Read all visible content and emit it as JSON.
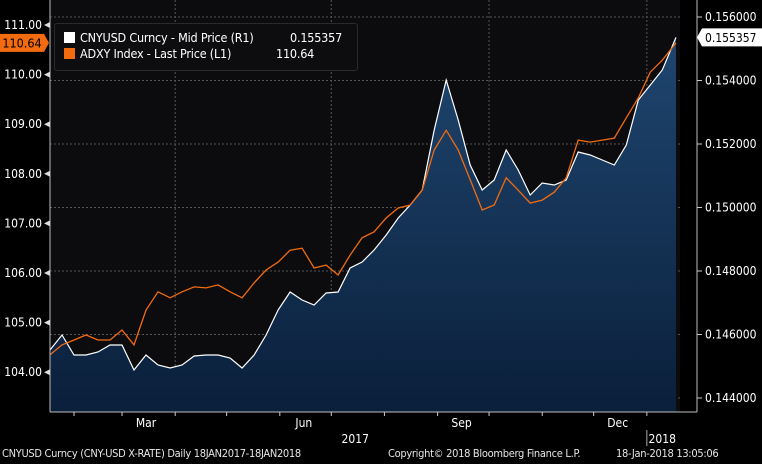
{
  "chart_data": {
    "type": "line",
    "title": "",
    "x": [
      "2017-01-18",
      "2017-01-25",
      "2017-02-01",
      "2017-02-08",
      "2017-02-15",
      "2017-02-22",
      "2017-03-01",
      "2017-03-08",
      "2017-03-15",
      "2017-03-22",
      "2017-03-29",
      "2017-04-05",
      "2017-04-12",
      "2017-04-19",
      "2017-04-26",
      "2017-05-03",
      "2017-05-10",
      "2017-05-17",
      "2017-05-24",
      "2017-05-31",
      "2017-06-07",
      "2017-06-14",
      "2017-06-21",
      "2017-06-28",
      "2017-07-05",
      "2017-07-12",
      "2017-07-19",
      "2017-07-26",
      "2017-08-02",
      "2017-08-09",
      "2017-08-16",
      "2017-08-23",
      "2017-08-30",
      "2017-09-06",
      "2017-09-13",
      "2017-09-20",
      "2017-09-27",
      "2017-10-04",
      "2017-10-11",
      "2017-10-18",
      "2017-10-25",
      "2017-11-01",
      "2017-11-08",
      "2017-11-15",
      "2017-11-22",
      "2017-11-29",
      "2017-12-06",
      "2017-12-13",
      "2017-12-20",
      "2017-12-27",
      "2018-01-03",
      "2018-01-10",
      "2018-01-18"
    ],
    "series": [
      {
        "name": "CNYUSD Curncy - Mid Price (R1)",
        "axis": "right",
        "color": "#ffffff",
        "fill": "area",
        "last_value": "0.155357",
        "values": [
          0.145512,
          0.145984,
          0.145354,
          0.145354,
          0.145449,
          0.145669,
          0.145669,
          0.144882,
          0.145354,
          0.145039,
          0.144945,
          0.145039,
          0.145323,
          0.145354,
          0.145354,
          0.14526,
          0.144945,
          0.145354,
          0.145984,
          0.146772,
          0.147339,
          0.147087,
          0.146929,
          0.147307,
          0.147339,
          0.148094,
          0.148283,
          0.148661,
          0.149134,
          0.149669,
          0.150079,
          0.150551,
          0.152441,
          0.154016,
          0.152756,
          0.151339,
          0.150551,
          0.150866,
          0.151811,
          0.151181,
          0.150394,
          0.150772,
          0.150709,
          0.150866,
          0.151748,
          0.151654,
          0.151496,
          0.151339,
          0.151969,
          0.153386,
          0.153858,
          0.154331,
          0.155357
        ]
      },
      {
        "name": "ADXY Index - Last Price (L1)",
        "axis": "left",
        "color": "#f26b0f",
        "last_value": "110.64",
        "values": [
          104.35,
          104.55,
          104.65,
          104.75,
          104.65,
          104.65,
          104.85,
          104.55,
          105.25,
          105.62,
          105.5,
          105.62,
          105.72,
          105.7,
          105.76,
          105.62,
          105.5,
          105.8,
          106.06,
          106.22,
          106.46,
          106.5,
          106.1,
          106.16,
          105.96,
          106.36,
          106.71,
          106.83,
          107.11,
          107.31,
          107.37,
          107.67,
          108.48,
          108.88,
          108.48,
          107.88,
          107.27,
          107.37,
          107.92,
          107.67,
          107.41,
          107.47,
          107.63,
          107.92,
          108.68,
          108.64,
          108.68,
          108.72,
          109.13,
          109.53,
          110.05,
          110.29,
          110.64
        ]
      }
    ],
    "left_axis": {
      "ylim": [
        103.5,
        111.5
      ],
      "ticks": [
        "104.00",
        "105.00",
        "106.00",
        "107.00",
        "108.00",
        "109.00",
        "110.00",
        "111.00"
      ]
    },
    "right_axis": {
      "ylim": [
        0.1436,
        0.1565
      ],
      "ticks": [
        "0.144000",
        "0.146000",
        "0.148000",
        "0.150000",
        "0.152000",
        "0.154000",
        "0.156000"
      ]
    },
    "x_ticks": [
      {
        "label": "Mar",
        "date": "2017-03-15"
      },
      {
        "label": "Jun",
        "date": "2017-06-15"
      },
      {
        "label": "Sep",
        "date": "2017-09-15"
      },
      {
        "label": "Dec",
        "date": "2017-12-15"
      }
    ],
    "years": [
      {
        "label": "2017",
        "date": "2017-07-15"
      },
      {
        "label": "2018",
        "date": "2018-01-10"
      }
    ],
    "grid": true,
    "legend_position": "top-left"
  },
  "legend": {
    "items": [
      {
        "label": "CNYUSD Curncy - Mid Price (R1)",
        "value": "0.155357",
        "color": "#ffffff"
      },
      {
        "label": "ADXY Index - Last Price (L1)",
        "value": "110.64",
        "color": "#f26b0f"
      }
    ]
  },
  "badges": {
    "left": "110.64",
    "right": "0.155357"
  },
  "footer": {
    "source": "CNYUSD Curncy (CNY-USD X-RATE)  Daily 18JAN2017-18JAN2018",
    "copyright": "Copyright© 2018 Bloomberg Finance L.P.",
    "timestamp": "18-Jan-2018 13:05:06"
  }
}
